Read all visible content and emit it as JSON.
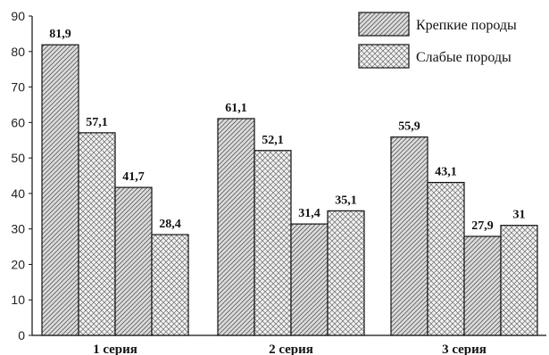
{
  "chart_data": {
    "type": "bar",
    "categories": [
      "1 серия",
      "2 серия",
      "3 серия"
    ],
    "series": [
      {
        "name": "Крепкие породы",
        "pattern": "hatch",
        "values": [
          81.9,
          61.1,
          55.9
        ],
        "labels": [
          "81,9",
          "61,1",
          "55,9"
        ]
      },
      {
        "name": "Слабые породы",
        "pattern": "crosshatch",
        "values": [
          57.1,
          52.1,
          43.1
        ],
        "labels": [
          "57,1",
          "52,1",
          "43,1"
        ]
      },
      {
        "name": "",
        "pattern": "hatch",
        "values": [
          41.7,
          31.4,
          27.9
        ],
        "labels": [
          "41,7",
          "31,4",
          "27,9"
        ]
      },
      {
        "name": "",
        "pattern": "crosshatch",
        "values": [
          28.4,
          35.1,
          31.0
        ],
        "labels": [
          "28,4",
          "35,1",
          "31"
        ]
      }
    ],
    "ylim": [
      0,
      90
    ],
    "yticks": [
      0,
      10,
      20,
      30,
      40,
      50,
      60,
      70,
      80,
      90
    ],
    "title": "",
    "xlabel": "",
    "ylabel": "",
    "grid": false,
    "legend_position": "top-right",
    "legend": [
      "Крепкие породы",
      "Слабые породы"
    ],
    "colors": {
      "bar_fill": "#d9d9d9",
      "hatch_stroke": "#555555",
      "outline": "#111111"
    }
  }
}
